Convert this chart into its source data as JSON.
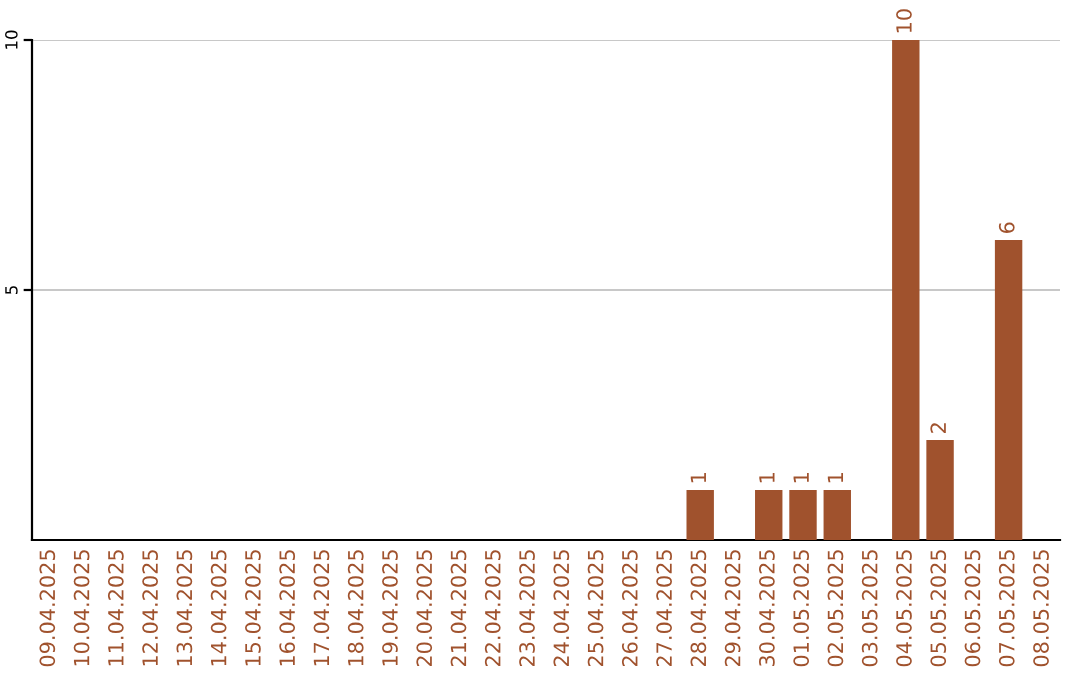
{
  "chart_data": {
    "type": "bar",
    "categories": [
      "09.04.2025",
      "10.04.2025",
      "11.04.2025",
      "12.04.2025",
      "13.04.2025",
      "14.04.2025",
      "15.04.2025",
      "16.04.2025",
      "17.04.2025",
      "18.04.2025",
      "19.04.2025",
      "20.04.2025",
      "21.04.2025",
      "22.04.2025",
      "23.04.2025",
      "24.04.2025",
      "25.04.2025",
      "26.04.2025",
      "27.04.2025",
      "28.04.2025",
      "29.04.2025",
      "30.04.2025",
      "01.05.2025",
      "02.05.2025",
      "03.05.2025",
      "04.05.2025",
      "05.05.2025",
      "06.05.2025",
      "07.05.2025",
      "08.05.2025"
    ],
    "values": [
      0,
      0,
      0,
      0,
      0,
      0,
      0,
      0,
      0,
      0,
      0,
      0,
      0,
      0,
      0,
      0,
      0,
      0,
      0,
      1,
      0,
      1,
      1,
      1,
      0,
      10,
      2,
      0,
      6,
      0
    ],
    "value_labels": [
      null,
      null,
      null,
      null,
      null,
      null,
      null,
      null,
      null,
      null,
      null,
      null,
      null,
      null,
      null,
      null,
      null,
      null,
      null,
      "1",
      null,
      "1",
      "1",
      "1",
      null,
      "10",
      "2",
      null,
      "6",
      null
    ],
    "color": "#a0522d",
    "ylim": [
      0,
      10
    ],
    "yticks": [
      5,
      10
    ],
    "grid": "y"
  }
}
